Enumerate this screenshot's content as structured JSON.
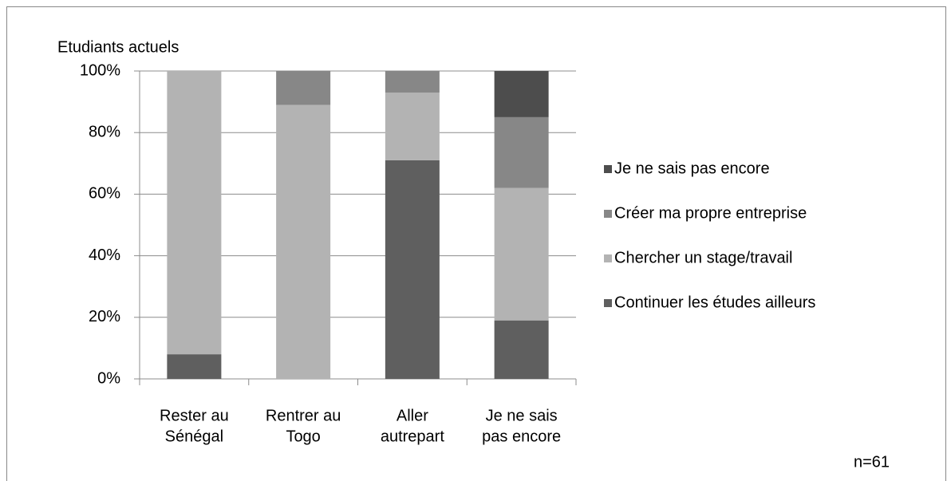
{
  "chart_data": {
    "type": "stacked_bar",
    "y_axis_title": "Etudiants actuels",
    "note": "n=61",
    "categories": [
      [
        "Rester au",
        "Sénégal"
      ],
      [
        "Rentrer au",
        "Togo"
      ],
      [
        "Aller",
        "autrepart"
      ],
      [
        "Je ne sais",
        "pas encore"
      ]
    ],
    "series": [
      {
        "name": "Continuer les études ailleurs",
        "color": "#5f5f5f",
        "values": [
          8,
          0,
          71,
          19
        ]
      },
      {
        "name": "Chercher un stage/travail",
        "color": "#b3b3b3",
        "values": [
          92,
          89,
          22,
          43
        ]
      },
      {
        "name": "Créer ma propre entreprise",
        "color": "#878787",
        "values": [
          0,
          11,
          7,
          23
        ]
      },
      {
        "name": "Je ne sais pas encore",
        "color": "#4d4d4d",
        "values": [
          0,
          0,
          0,
          15
        ]
      }
    ],
    "ylim": [
      0,
      100
    ],
    "yticks": [
      {
        "value": 0,
        "label": "0%"
      },
      {
        "value": 20,
        "label": "20%"
      },
      {
        "value": 40,
        "label": "40%"
      },
      {
        "value": 60,
        "label": "60%"
      },
      {
        "value": 80,
        "label": "80%"
      },
      {
        "value": 100,
        "label": "100%"
      }
    ],
    "grid": true,
    "legend": "right"
  }
}
